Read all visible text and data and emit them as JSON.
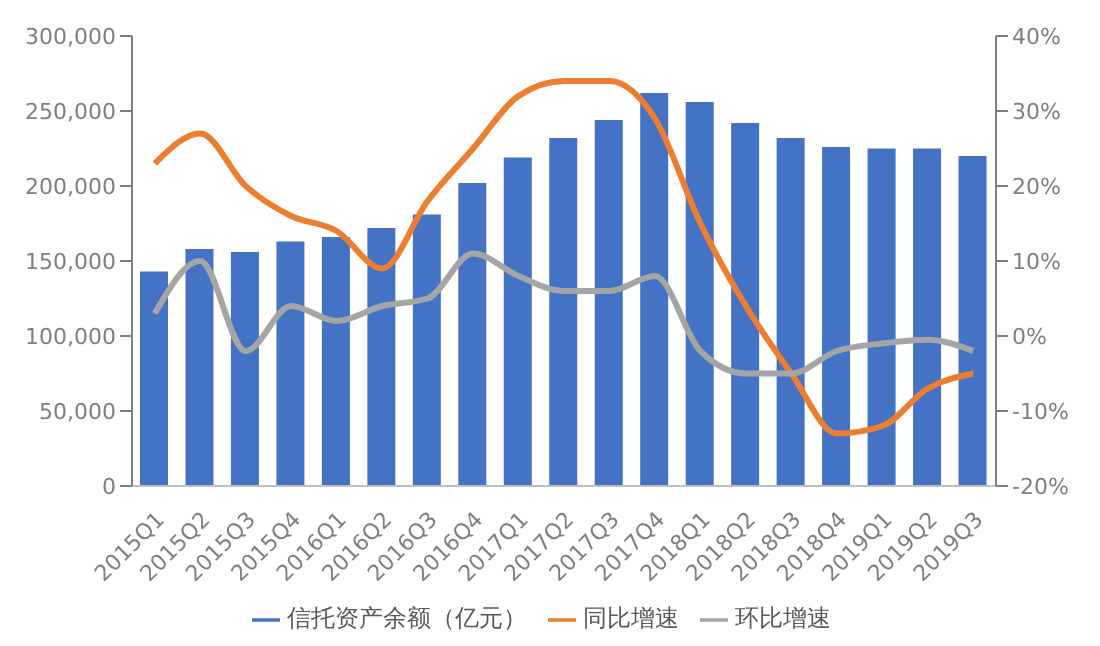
{
  "chart_data": {
    "type": "bar",
    "categories": [
      "2015Q1",
      "2015Q2",
      "2015Q3",
      "2015Q4",
      "2016Q1",
      "2016Q2",
      "2016Q3",
      "2016Q4",
      "2017Q1",
      "2017Q2",
      "2017Q3",
      "2017Q4",
      "2018Q1",
      "2018Q2",
      "2018Q3",
      "2018Q4",
      "2019Q1",
      "2019Q2",
      "2019Q3"
    ],
    "series": [
      {
        "name": "信托资产余额（亿元）",
        "color": "#4472c4",
        "values": [
          143000,
          158000,
          156000,
          163000,
          166000,
          172000,
          181000,
          202000,
          219000,
          232000,
          244000,
          262000,
          256000,
          242000,
          232000,
          226000,
          225000,
          225000,
          220000
        ]
      },
      {
        "name": "同比增速",
        "type": "line",
        "axis": "y2",
        "color": "#ed7d31",
        "values": [
          23,
          27,
          20,
          16,
          14,
          9,
          18,
          25,
          32,
          34,
          34,
          29,
          15,
          4,
          -5,
          -13,
          -12,
          -7,
          -5
        ]
      },
      {
        "name": "环比增速",
        "type": "line",
        "axis": "y2",
        "color": "#a5a5a5",
        "values": [
          3,
          10,
          -2,
          4,
          2,
          4,
          5,
          11,
          8,
          6,
          6,
          8,
          -2,
          -5,
          -5,
          -2,
          -1,
          -0.5,
          -2
        ]
      }
    ],
    "ylim": [
      0,
      300000
    ],
    "yticks": [
      {
        "value": 0,
        "label": "0"
      },
      {
        "value": 50000,
        "label": "50,000"
      },
      {
        "value": 100000,
        "label": "100,000"
      },
      {
        "value": 150000,
        "label": "150,000"
      },
      {
        "value": 200000,
        "label": "200,000"
      },
      {
        "value": 250000,
        "label": "250,000"
      },
      {
        "value": 300000,
        "label": "300,000"
      }
    ],
    "y2lim": [
      -20,
      40
    ],
    "y2ticks": [
      {
        "value": -20,
        "label": "-20%"
      },
      {
        "value": -10,
        "label": "-10%"
      },
      {
        "value": 0,
        "label": "0%"
      },
      {
        "value": 10,
        "label": "10%"
      },
      {
        "value": 20,
        "label": "20%"
      },
      {
        "value": 30,
        "label": "30%"
      },
      {
        "value": 40,
        "label": "40%"
      }
    ],
    "legend": "bottom",
    "grid": false
  }
}
